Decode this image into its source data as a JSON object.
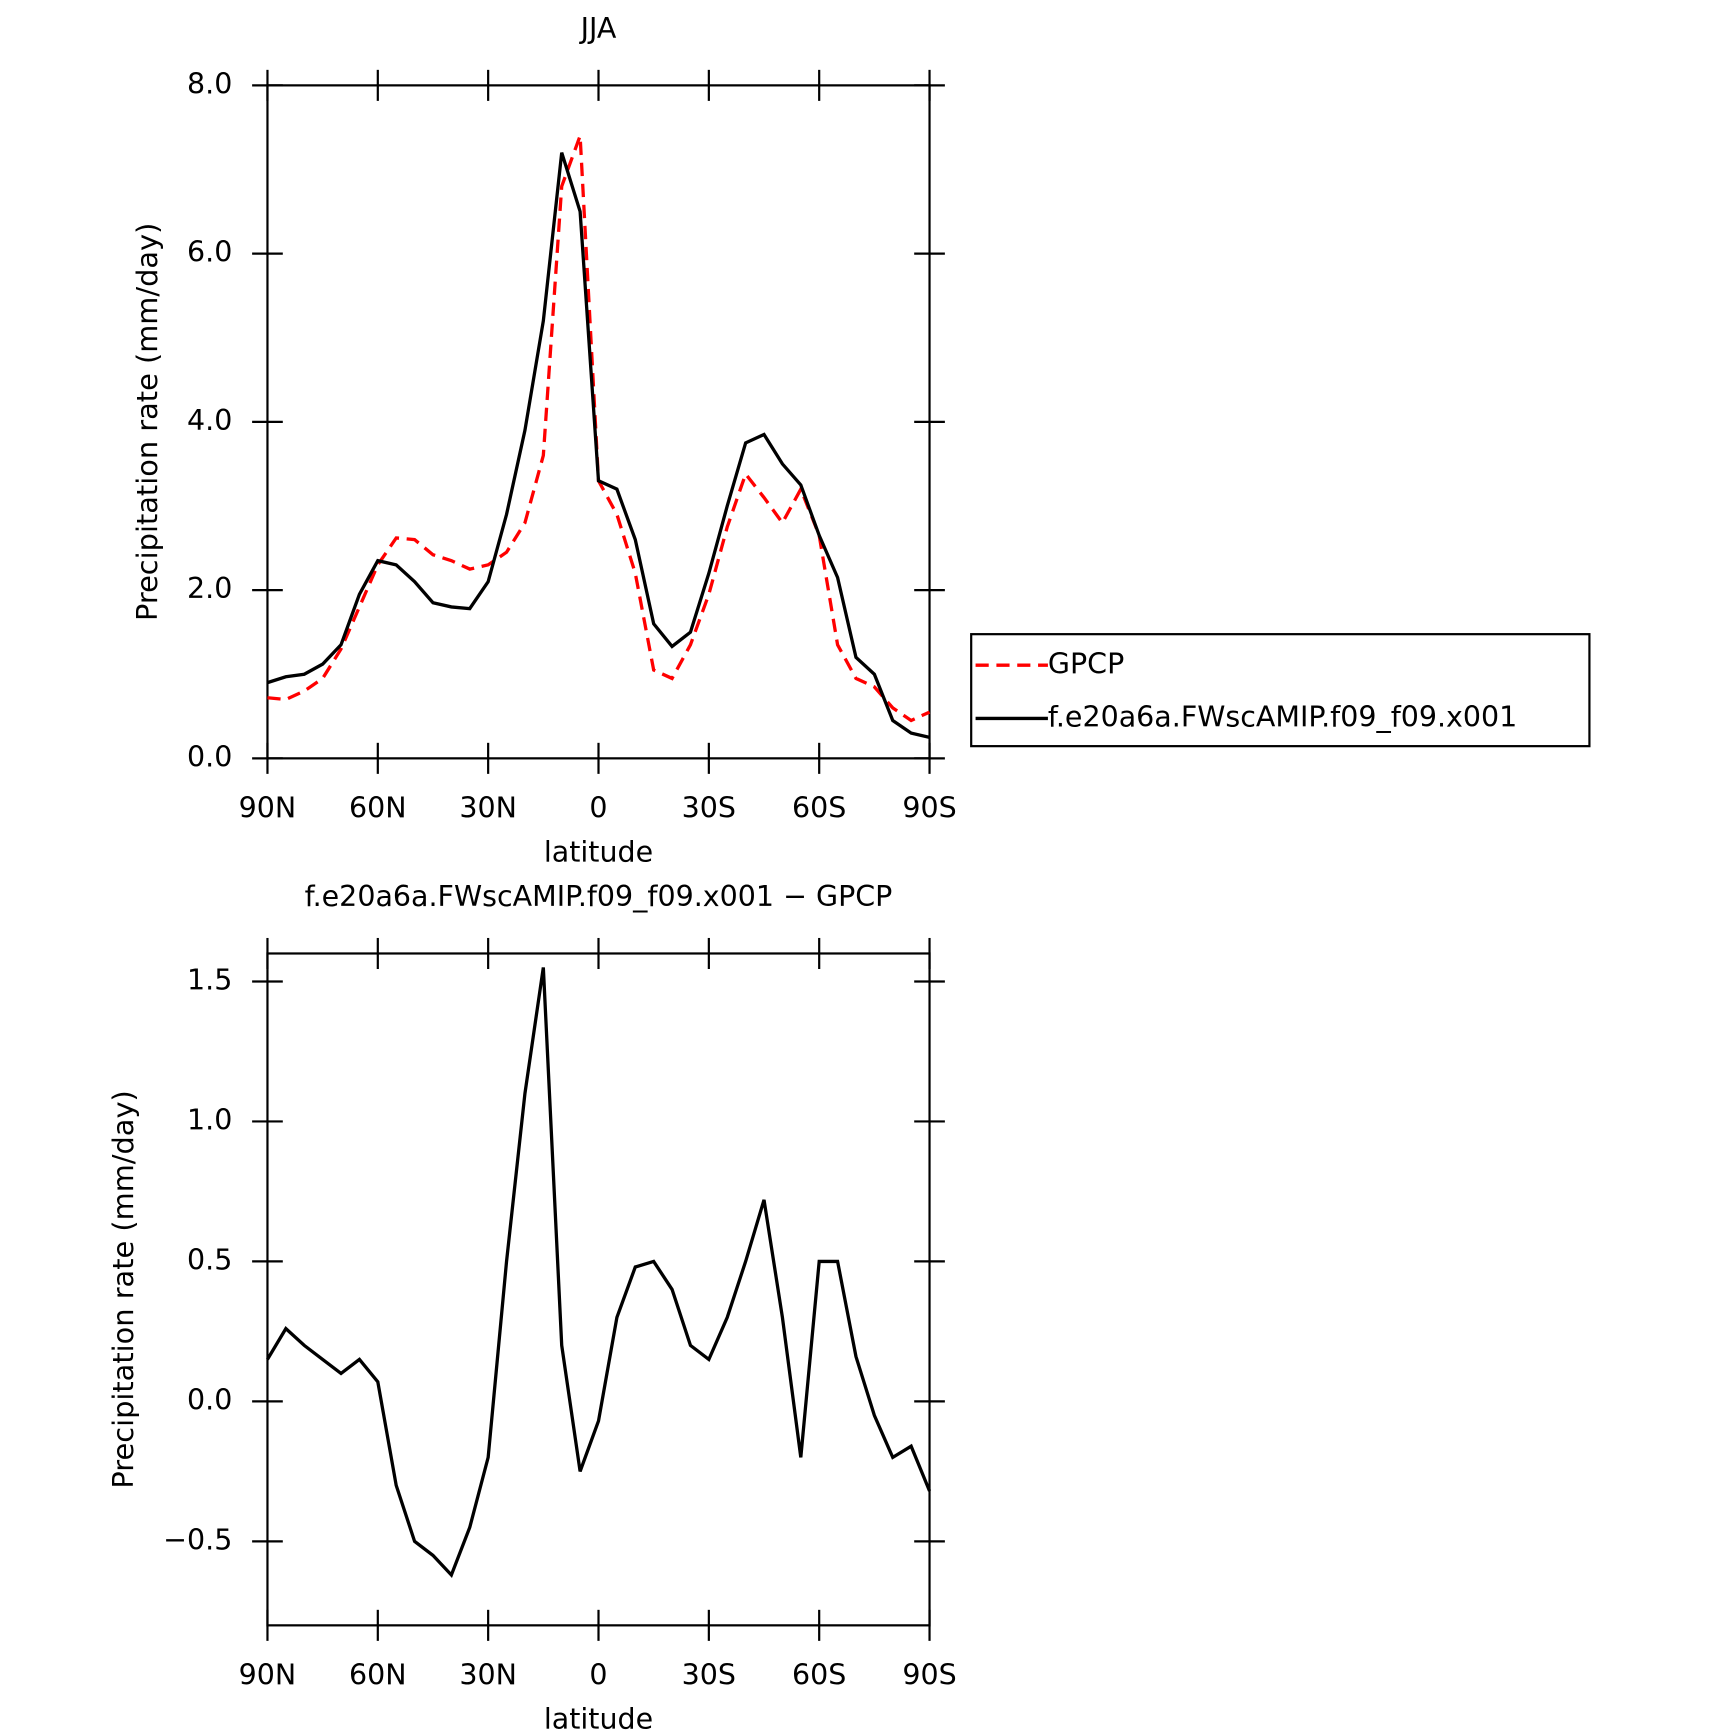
{
  "chart_data": [
    {
      "type": "line",
      "title": "JJA",
      "x_label": "latitude",
      "y_label": "Precipitation rate (mm/day)",
      "x": [
        90,
        85,
        80,
        75,
        70,
        65,
        60,
        55,
        50,
        45,
        40,
        35,
        30,
        25,
        20,
        15,
        10,
        5,
        0,
        -5,
        -10,
        -15,
        -20,
        -25,
        -30,
        -35,
        -40,
        -45,
        -50,
        -55,
        -60,
        -65,
        -70,
        -75,
        -80,
        -85,
        -90
      ],
      "xlim": [
        90,
        -90
      ],
      "xticks": [
        {
          "value": 90,
          "label": "90N"
        },
        {
          "value": 60,
          "label": "60N"
        },
        {
          "value": 30,
          "label": "30N"
        },
        0,
        {
          "value": -30,
          "label": "30S"
        },
        {
          "value": -60,
          "label": "60S"
        },
        {
          "value": -90,
          "label": "90S"
        }
      ],
      "ylim": [
        0,
        8
      ],
      "yticks": [
        {
          "value": 0,
          "label": "0.0"
        },
        {
          "value": 2,
          "label": "2.0"
        },
        {
          "value": 4,
          "label": "4.0"
        },
        {
          "value": 6,
          "label": "6.0"
        },
        {
          "value": 8,
          "label": "8.0"
        }
      ],
      "series": [
        {
          "name": "GPCP",
          "color": "#ff0000",
          "line_style": "dashed",
          "values": [
            0.72,
            0.7,
            0.8,
            0.95,
            1.3,
            1.8,
            2.3,
            2.62,
            2.6,
            2.42,
            2.35,
            2.25,
            2.3,
            2.45,
            2.8,
            3.6,
            6.8,
            7.4,
            3.3,
            2.9,
            2.2,
            1.05,
            0.95,
            1.35,
            1.95,
            2.75,
            3.38,
            3.1,
            2.8,
            3.2,
            2.65,
            1.35,
            0.95,
            0.85,
            0.6,
            0.45,
            0.55
          ]
        },
        {
          "name": "f.e20a6a.FWscAMIP.f09_f09.x001",
          "color": "#000000",
          "line_style": "solid",
          "values": [
            0.9,
            0.97,
            1.0,
            1.12,
            1.35,
            1.95,
            2.35,
            2.3,
            2.1,
            1.85,
            1.8,
            1.78,
            2.1,
            2.9,
            3.9,
            5.2,
            7.2,
            6.5,
            3.3,
            3.2,
            2.6,
            1.6,
            1.33,
            1.5,
            2.2,
            3.0,
            3.75,
            3.85,
            3.5,
            3.25,
            2.65,
            2.15,
            1.2,
            1.0,
            0.45,
            0.3,
            0.25
          ]
        }
      ]
    },
    {
      "type": "line",
      "title": "f.e20a6a.FWscAMIP.f09_f09.x001 − GPCP",
      "x_label": "latitude",
      "y_label": "Precipitation rate (mm/day)",
      "x": [
        90,
        85,
        80,
        75,
        70,
        65,
        60,
        55,
        50,
        45,
        40,
        35,
        30,
        25,
        20,
        15,
        10,
        5,
        0,
        -5,
        -10,
        -15,
        -20,
        -25,
        -30,
        -35,
        -40,
        -45,
        -50,
        -55,
        -60,
        -65,
        -70,
        -75,
        -80,
        -85,
        -90
      ],
      "xlim": [
        90,
        -90
      ],
      "xticks": [
        {
          "value": 90,
          "label": "90N"
        },
        {
          "value": 60,
          "label": "60N"
        },
        {
          "value": 30,
          "label": "30N"
        },
        0,
        {
          "value": -30,
          "label": "30S"
        },
        {
          "value": -60,
          "label": "60S"
        },
        {
          "value": -90,
          "label": "90S"
        }
      ],
      "ylim": [
        -0.8,
        1.6
      ],
      "yticks": [
        {
          "value": -0.5,
          "label": "−0.5"
        },
        {
          "value": 0,
          "label": "0.0"
        },
        0.5,
        {
          "value": 1,
          "label": "1.0"
        },
        1.5
      ],
      "series": [
        {
          "color": "#000000",
          "line_style": "solid",
          "values": [
            0.15,
            0.26,
            0.2,
            0.15,
            0.1,
            0.15,
            0.07,
            -0.3,
            -0.5,
            -0.55,
            -0.62,
            -0.45,
            -0.2,
            0.5,
            1.1,
            1.55,
            0.2,
            -0.25,
            -0.07,
            0.3,
            0.48,
            0.5,
            0.4,
            0.2,
            0.15,
            0.3,
            0.5,
            0.72,
            0.3,
            -0.2,
            0.5,
            0.5,
            0.16,
            -0.05,
            -0.2,
            -0.16,
            -0.32
          ]
        }
      ]
    }
  ]
}
